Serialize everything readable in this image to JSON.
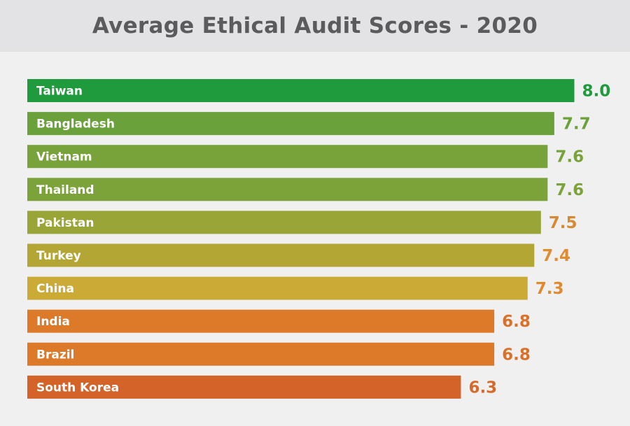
{
  "chart_data": {
    "type": "bar",
    "orientation": "horizontal",
    "title": "Average Ethical Audit Scores - 2020",
    "categories": [
      "Taiwan",
      "Bangladesh",
      "Vietnam",
      "Thailand",
      "Pakistan",
      "Turkey",
      "China",
      "India",
      "Brazil",
      "South Korea"
    ],
    "values": [
      8.0,
      7.7,
      7.6,
      7.6,
      7.5,
      7.4,
      7.3,
      6.8,
      6.8,
      6.3
    ],
    "value_labels": [
      "8.0",
      "7.7",
      "7.6",
      "7.6",
      "7.5",
      "7.4",
      "7.3",
      "6.8",
      "6.8",
      "6.3"
    ],
    "bar_colors": [
      "#1f9b3d",
      "#6aa13a",
      "#77a33a",
      "#7ca33a",
      "#99a536",
      "#b3a634",
      "#ccaa36",
      "#dc7a2a",
      "#dc7a2a",
      "#d4632a"
    ],
    "label_colors": [
      "#1f9b3d",
      "#6aa13a",
      "#77a33a",
      "#7ca33a",
      "#d68a32",
      "#e08c30",
      "#e08a30",
      "#db7028",
      "#db7028",
      "#d66a2a"
    ],
    "xlabel": "",
    "ylabel": "",
    "grid": false,
    "legend": "none"
  }
}
